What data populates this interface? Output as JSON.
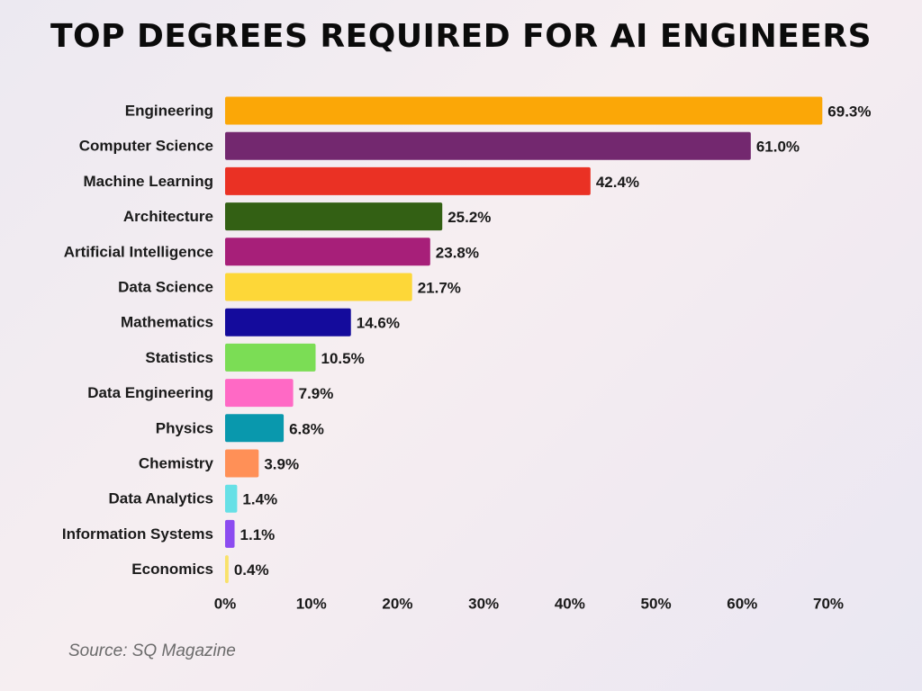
{
  "chart_data": {
    "type": "bar",
    "orientation": "horizontal",
    "title": "TOP DEGREES REQUIRED FOR AI ENGINEERS",
    "xlabel": "",
    "ylabel": "",
    "xlim": [
      0,
      70
    ],
    "ticks": [
      0,
      10,
      20,
      30,
      40,
      50,
      60,
      70
    ],
    "tick_suffix": "%",
    "grid": false,
    "categories": [
      "Engineering",
      "Computer Science",
      "Machine Learning",
      "Architecture",
      "Artificial Intelligence",
      "Data Science",
      "Mathematics",
      "Statistics",
      "Data Engineering",
      "Physics",
      "Chemistry",
      "Data Analytics",
      "Information Systems",
      "Economics"
    ],
    "values": [
      69.3,
      61.0,
      42.4,
      25.2,
      23.8,
      21.7,
      14.6,
      10.5,
      7.9,
      6.8,
      3.9,
      1.4,
      1.1,
      0.4
    ],
    "value_labels": [
      "69.3%",
      "61.0%",
      "42.4%",
      "25.2%",
      "23.8%",
      "21.7%",
      "14.6%",
      "10.5%",
      "7.9%",
      "6.8%",
      "3.9%",
      "1.4%",
      "1.1%",
      "0.4%"
    ],
    "colors": [
      "#FBA707",
      "#73286F",
      "#EA3124",
      "#336014",
      "#A71F79",
      "#FDD738",
      "#140B9C",
      "#7BDD55",
      "#FF69C5",
      "#0998AD",
      "#FF9057",
      "#67E0E6",
      "#8C4CF0",
      "#F9E26A"
    ]
  },
  "source": "Source: SQ Magazine"
}
